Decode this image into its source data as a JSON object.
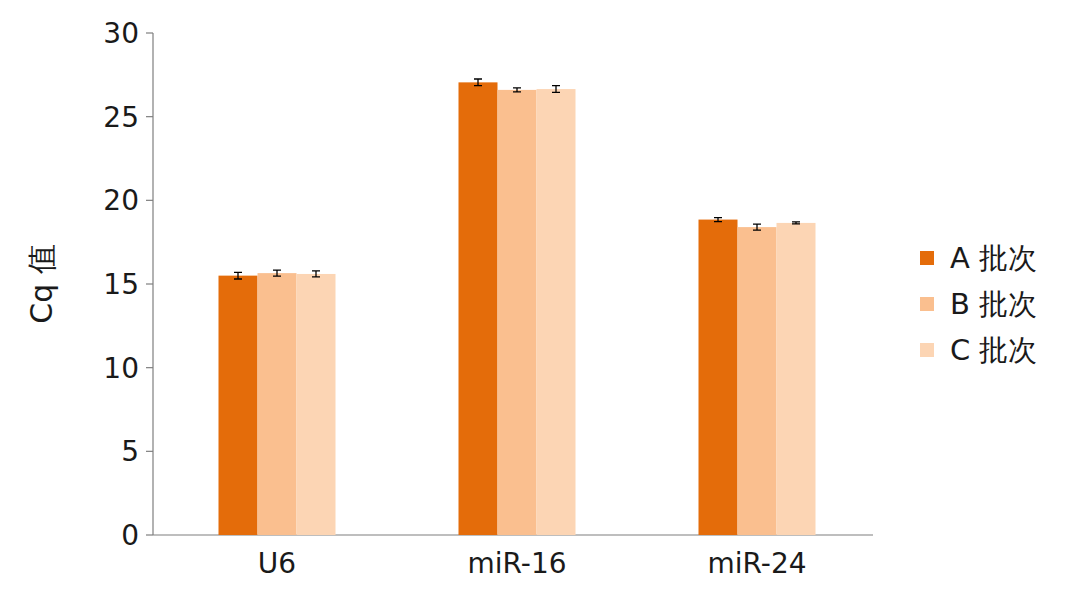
{
  "chart_data": {
    "type": "bar",
    "y_label": "Cq 值",
    "categories": [
      "U6",
      "miR-16",
      "miR-24"
    ],
    "series": [
      {
        "name": "A 批次",
        "color": "#e46c0a",
        "values": [
          15.5,
          27.05,
          18.85
        ],
        "errors": [
          0.2,
          0.2,
          0.12
        ]
      },
      {
        "name": "B 批次",
        "color": "#fabf8f",
        "values": [
          15.65,
          26.6,
          18.4
        ],
        "errors": [
          0.18,
          0.12,
          0.18
        ]
      },
      {
        "name": "C 批次",
        "color": "#fcd5b4",
        "values": [
          15.6,
          26.65,
          18.65
        ],
        "errors": [
          0.18,
          0.2,
          0.06
        ]
      }
    ],
    "ylim": [
      0,
      30
    ],
    "yticks": [
      0,
      5,
      10,
      15,
      20,
      25,
      30
    ],
    "grid": false,
    "legend": "right"
  }
}
